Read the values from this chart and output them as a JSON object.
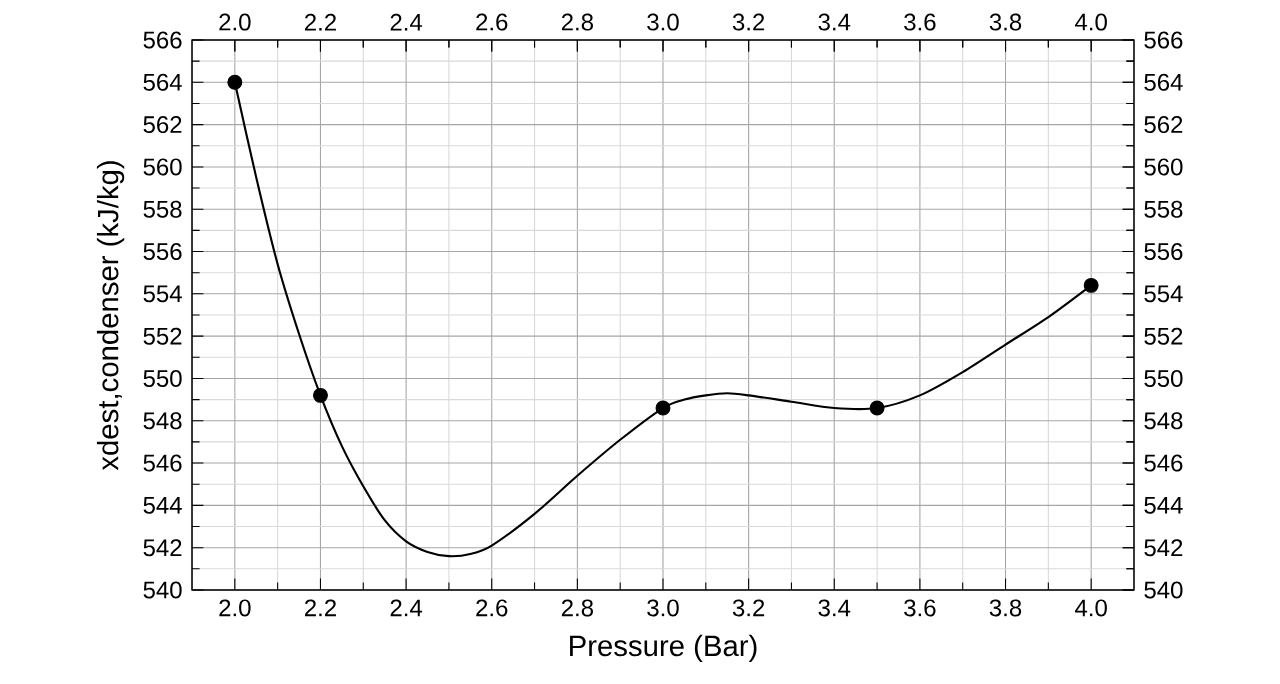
{
  "chart_data": {
    "type": "line",
    "xlabel": "Pressure (Bar)",
    "ylabel": "xdest,condenser (kJ/kg)",
    "xlim": [
      1.9,
      4.1
    ],
    "xticks": [
      {
        "value": 2,
        "label": "2.0"
      },
      2.2,
      2.4,
      2.6,
      2.8,
      {
        "value": 3,
        "label": "3.0"
      },
      3.2,
      3.4,
      3.6,
      3.8,
      {
        "value": 4,
        "label": "4.0"
      }
    ],
    "x2lim": [
      1.9,
      4.1
    ],
    "x2ticks": [
      {
        "value": 2,
        "label": "2.0"
      },
      2.2,
      2.4,
      2.6,
      2.8,
      {
        "value": 3,
        "label": "3.0"
      },
      3.2,
      3.4,
      3.6,
      3.8,
      {
        "value": 4,
        "label": "4.0"
      }
    ],
    "ylim": [
      540,
      566
    ],
    "yticks": [
      540,
      542,
      544,
      546,
      548,
      550,
      552,
      554,
      556,
      558,
      560,
      562,
      564,
      566
    ],
    "y2lim": [
      540,
      566
    ],
    "y2ticks": [
      540,
      542,
      544,
      546,
      548,
      550,
      552,
      554,
      556,
      558,
      560,
      562,
      564,
      566
    ],
    "grid": true,
    "series": [
      {
        "type": "line",
        "color": "#000000",
        "marker": "none",
        "x": [
          2.0,
          2.05,
          2.1,
          2.15,
          2.2,
          2.25,
          2.3,
          2.35,
          2.4,
          2.45,
          2.5,
          2.55,
          2.6,
          2.7,
          2.8,
          2.9,
          3.0,
          3.05,
          3.1,
          3.15,
          3.2,
          3.3,
          3.4,
          3.5,
          3.6,
          3.7,
          3.8,
          3.9,
          4.0
        ],
        "values": [
          564,
          559.5,
          555.4,
          552.1,
          549.2,
          546.8,
          544.9,
          543.3,
          542.3,
          541.8,
          541.6,
          541.7,
          542.1,
          543.6,
          545.4,
          547.1,
          548.6,
          549.0,
          549.2,
          549.3,
          549.2,
          548.9,
          548.6,
          548.6,
          549.2,
          550.3,
          551.6,
          552.9,
          554.4
        ]
      },
      {
        "type": "scatter",
        "color": "#000000",
        "marker": "circle",
        "x": [
          2.0,
          2.2,
          3.0,
          3.5,
          4.0
        ],
        "values": [
          564,
          549.2,
          548.6,
          548.6,
          554.4
        ]
      }
    ]
  }
}
